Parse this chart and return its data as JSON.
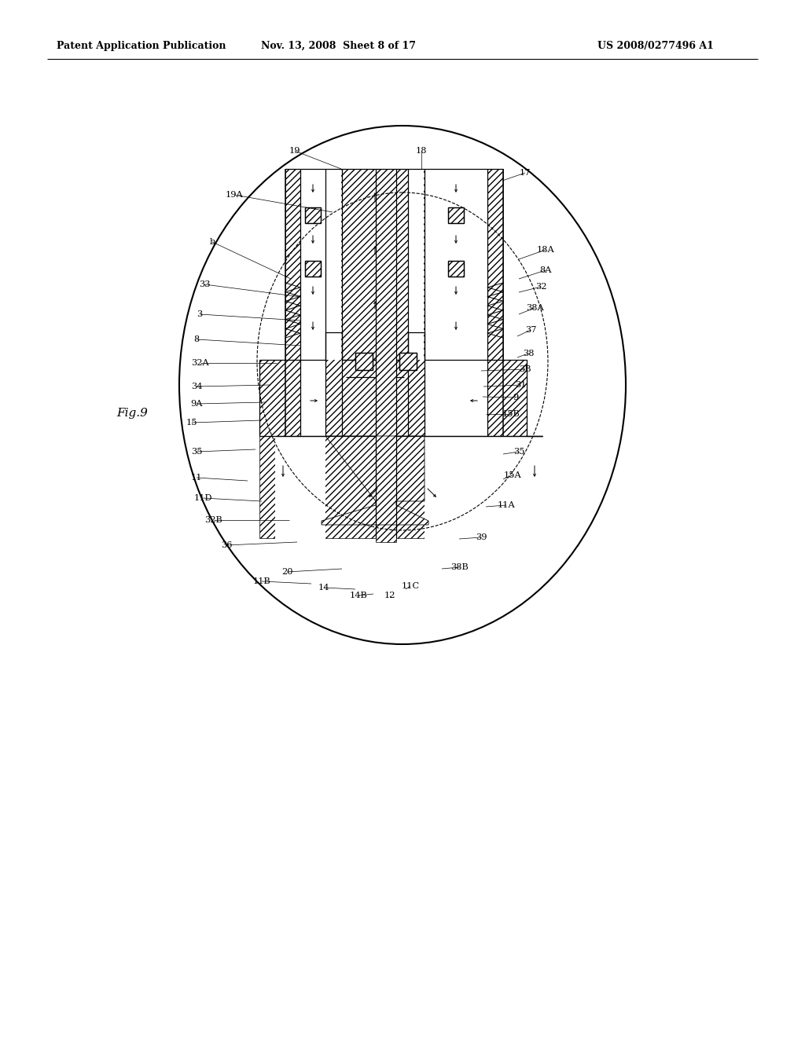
{
  "header_left": "Patent Application Publication",
  "header_center": "Nov. 13, 2008  Sheet 8 of 17",
  "header_right": "US 2008/0277496 A1",
  "fig_label": "Fig.9",
  "bg_color": "#ffffff"
}
